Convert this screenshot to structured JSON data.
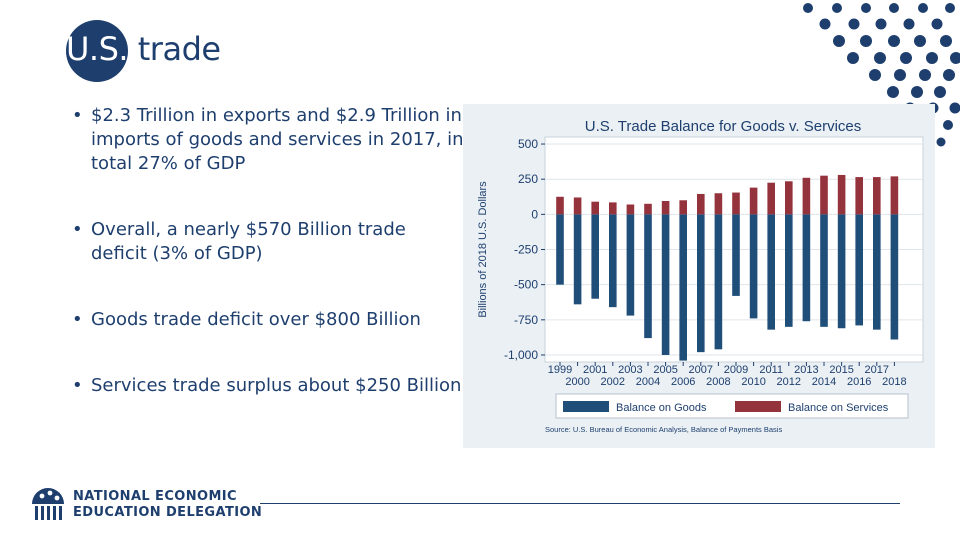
{
  "slide": {
    "title_a": "U.S.",
    "title_b": " trade",
    "bullets": [
      "$2.3 Trillion in exports and $2.9 Trillion in imports of goods and services in 2017, in total 27% of GDP",
      "Overall, a nearly $570 Billion trade deficit (3% of GDP)",
      "Goods trade deficit over $800 Billion",
      "Services trade surplus about $250 Billion"
    ]
  },
  "logo": {
    "line1": "NATIONAL ECONOMIC",
    "line2": "EDUCATION DELEGATION"
  },
  "colors": {
    "navy": "#1e3f6e",
    "goods": "#1f4e79",
    "services": "#94333c",
    "chart_bg": "#eaf0f4"
  },
  "chart_data": {
    "type": "bar",
    "title": "U.S. Trade Balance for Goods v. Services",
    "xlabel": "",
    "ylabel": "Billions of 2018 U.S. Dollars",
    "ylim": [
      -1050,
      550
    ],
    "yticks": [
      500,
      250,
      0,
      -250,
      -500,
      -750,
      -1000
    ],
    "ytick_labels": [
      "500",
      "250",
      "0",
      "-250",
      "-500",
      "-750",
      "-1,000"
    ],
    "categories": [
      "1999",
      "2000",
      "2001",
      "2002",
      "2003",
      "2004",
      "2005",
      "2006",
      "2007",
      "2008",
      "2009",
      "2010",
      "2011",
      "2012",
      "2013",
      "2014",
      "2015",
      "2016",
      "2017",
      "2018"
    ],
    "xtick_labels_top": [
      "1999",
      "2001",
      "2003",
      "2005",
      "2007",
      "2009",
      "2011",
      "2013",
      "2015",
      "2017"
    ],
    "xtick_labels_bottom": [
      "2000",
      "2002",
      "2004",
      "2006",
      "2008",
      "2010",
      "2012",
      "2014",
      "2016",
      "2018"
    ],
    "series": [
      {
        "name": "Balance on Goods",
        "values": [
          -500,
          -640,
          -600,
          -660,
          -720,
          -880,
          -1000,
          -1040,
          -980,
          -960,
          -580,
          -740,
          -820,
          -800,
          -760,
          -800,
          -810,
          -790,
          -820,
          -890
        ]
      },
      {
        "name": "Balance on Services",
        "values": [
          125,
          120,
          90,
          85,
          70,
          75,
          95,
          100,
          145,
          150,
          155,
          190,
          225,
          235,
          260,
          275,
          280,
          265,
          265,
          270
        ]
      }
    ],
    "source": "Source: U.S. Bureau of Economic Analysis, Balance of Payments Basis",
    "legend_position": "bottom"
  }
}
